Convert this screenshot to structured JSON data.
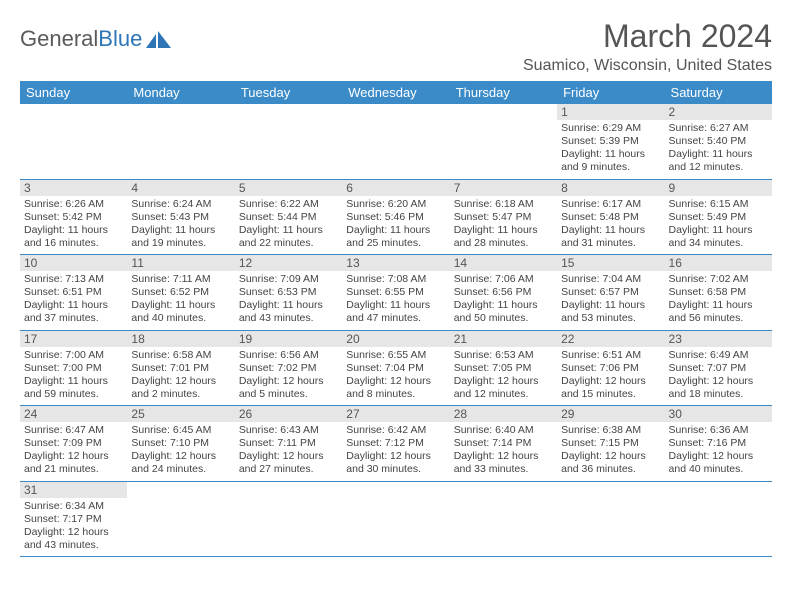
{
  "logo": {
    "text1": "General",
    "text2": "Blue"
  },
  "title": "March 2024",
  "location": "Suamico, Wisconsin, United States",
  "weekdays": [
    "Sunday",
    "Monday",
    "Tuesday",
    "Wednesday",
    "Thursday",
    "Friday",
    "Saturday"
  ],
  "colors": {
    "header_bg": "#3b8bc9",
    "header_fg": "#ffffff",
    "daynum_bg": "#e6e6e6",
    "rule": "#3b8bc9",
    "logo_blue": "#2e75b6"
  },
  "days": {
    "1": {
      "sunrise": "6:29 AM",
      "sunset": "5:39 PM",
      "daylight": "11 hours and 9 minutes."
    },
    "2": {
      "sunrise": "6:27 AM",
      "sunset": "5:40 PM",
      "daylight": "11 hours and 12 minutes."
    },
    "3": {
      "sunrise": "6:26 AM",
      "sunset": "5:42 PM",
      "daylight": "11 hours and 16 minutes."
    },
    "4": {
      "sunrise": "6:24 AM",
      "sunset": "5:43 PM",
      "daylight": "11 hours and 19 minutes."
    },
    "5": {
      "sunrise": "6:22 AM",
      "sunset": "5:44 PM",
      "daylight": "11 hours and 22 minutes."
    },
    "6": {
      "sunrise": "6:20 AM",
      "sunset": "5:46 PM",
      "daylight": "11 hours and 25 minutes."
    },
    "7": {
      "sunrise": "6:18 AM",
      "sunset": "5:47 PM",
      "daylight": "11 hours and 28 minutes."
    },
    "8": {
      "sunrise": "6:17 AM",
      "sunset": "5:48 PM",
      "daylight": "11 hours and 31 minutes."
    },
    "9": {
      "sunrise": "6:15 AM",
      "sunset": "5:49 PM",
      "daylight": "11 hours and 34 minutes."
    },
    "10": {
      "sunrise": "7:13 AM",
      "sunset": "6:51 PM",
      "daylight": "11 hours and 37 minutes."
    },
    "11": {
      "sunrise": "7:11 AM",
      "sunset": "6:52 PM",
      "daylight": "11 hours and 40 minutes."
    },
    "12": {
      "sunrise": "7:09 AM",
      "sunset": "6:53 PM",
      "daylight": "11 hours and 43 minutes."
    },
    "13": {
      "sunrise": "7:08 AM",
      "sunset": "6:55 PM",
      "daylight": "11 hours and 47 minutes."
    },
    "14": {
      "sunrise": "7:06 AM",
      "sunset": "6:56 PM",
      "daylight": "11 hours and 50 minutes."
    },
    "15": {
      "sunrise": "7:04 AM",
      "sunset": "6:57 PM",
      "daylight": "11 hours and 53 minutes."
    },
    "16": {
      "sunrise": "7:02 AM",
      "sunset": "6:58 PM",
      "daylight": "11 hours and 56 minutes."
    },
    "17": {
      "sunrise": "7:00 AM",
      "sunset": "7:00 PM",
      "daylight": "11 hours and 59 minutes."
    },
    "18": {
      "sunrise": "6:58 AM",
      "sunset": "7:01 PM",
      "daylight": "12 hours and 2 minutes."
    },
    "19": {
      "sunrise": "6:56 AM",
      "sunset": "7:02 PM",
      "daylight": "12 hours and 5 minutes."
    },
    "20": {
      "sunrise": "6:55 AM",
      "sunset": "7:04 PM",
      "daylight": "12 hours and 8 minutes."
    },
    "21": {
      "sunrise": "6:53 AM",
      "sunset": "7:05 PM",
      "daylight": "12 hours and 12 minutes."
    },
    "22": {
      "sunrise": "6:51 AM",
      "sunset": "7:06 PM",
      "daylight": "12 hours and 15 minutes."
    },
    "23": {
      "sunrise": "6:49 AM",
      "sunset": "7:07 PM",
      "daylight": "12 hours and 18 minutes."
    },
    "24": {
      "sunrise": "6:47 AM",
      "sunset": "7:09 PM",
      "daylight": "12 hours and 21 minutes."
    },
    "25": {
      "sunrise": "6:45 AM",
      "sunset": "7:10 PM",
      "daylight": "12 hours and 24 minutes."
    },
    "26": {
      "sunrise": "6:43 AM",
      "sunset": "7:11 PM",
      "daylight": "12 hours and 27 minutes."
    },
    "27": {
      "sunrise": "6:42 AM",
      "sunset": "7:12 PM",
      "daylight": "12 hours and 30 minutes."
    },
    "28": {
      "sunrise": "6:40 AM",
      "sunset": "7:14 PM",
      "daylight": "12 hours and 33 minutes."
    },
    "29": {
      "sunrise": "6:38 AM",
      "sunset": "7:15 PM",
      "daylight": "12 hours and 36 minutes."
    },
    "30": {
      "sunrise": "6:36 AM",
      "sunset": "7:16 PM",
      "daylight": "12 hours and 40 minutes."
    },
    "31": {
      "sunrise": "6:34 AM",
      "sunset": "7:17 PM",
      "daylight": "12 hours and 43 minutes."
    }
  },
  "layout": {
    "first_weekday_index": 5,
    "num_days": 31
  }
}
